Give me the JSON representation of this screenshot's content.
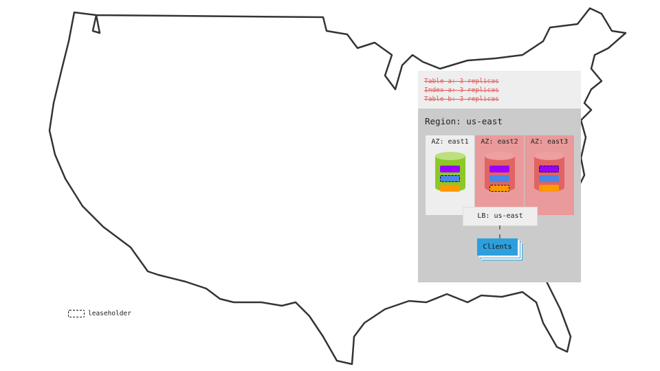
{
  "map": {
    "icon": "us-map-outline"
  },
  "tables": [
    "Table a: 3 replicas",
    "Index a: 3 replicas",
    "Table b: 3 replicas"
  ],
  "region": {
    "label": "Region: us-east"
  },
  "azs": [
    {
      "label": "AZ: east1",
      "status": "up",
      "bg": "#eeeeee",
      "cyl": "#8cc928",
      "cyltop": "#bde07f",
      "leaseholder": 1
    },
    {
      "label": "AZ: east2",
      "status": "down",
      "bg": "#ea9a9a",
      "cyl": "#e06464",
      "cyltop": "#ee9f9f",
      "leaseholder": 2
    },
    {
      "label": "AZ: east3",
      "status": "down",
      "bg": "#ea9a9a",
      "cyl": "#e06464",
      "cyltop": "#ee9f9f",
      "leaseholder": 0
    }
  ],
  "replica_colors": [
    "#9900ff",
    "#4a86e8",
    "#ff9900"
  ],
  "lb": {
    "label": "LB: us-east"
  },
  "clients": {
    "label": "Clients"
  },
  "legend": {
    "label": "leaseholder"
  }
}
